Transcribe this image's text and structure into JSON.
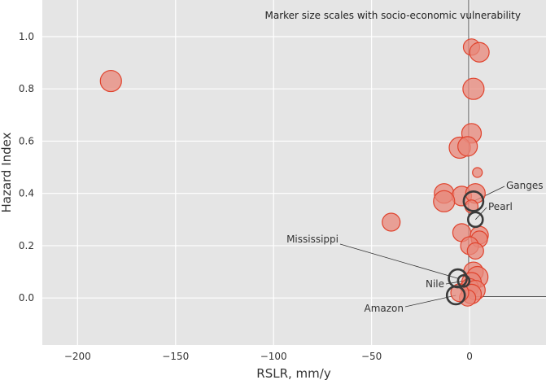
{
  "chart_data": {
    "type": "scatter",
    "xlabel": "RSLR, mm/y",
    "ylabel": "Hazard Index",
    "xlim": [
      -218,
      39
    ],
    "ylim": [
      -0.18,
      1.14
    ],
    "xticks": [
      -200,
      -150,
      -100,
      -50,
      0
    ],
    "xtick_labels": [
      "−200",
      "−150",
      "−100",
      "−50",
      "0"
    ],
    "yticks": [
      0.0,
      0.2,
      0.4,
      0.6,
      0.8,
      1.0
    ],
    "ytick_labels": [
      "0.0",
      "0.2",
      "0.4",
      "0.6",
      "0.8",
      "1.0"
    ],
    "grid": true,
    "note": "Marker size scales with socio-economic vulnerability",
    "colors": {
      "background": "#e5e5e5",
      "grid": "#ffffff",
      "point_fill": "#e8877a",
      "point_edge": "#e0432d",
      "highlight_edge": "#3a3a3a",
      "reference_line": "#555555"
    },
    "points": [
      {
        "x": -183,
        "y": 0.83,
        "size": 13
      },
      {
        "x": 1,
        "y": 0.96,
        "size": 10
      },
      {
        "x": 5,
        "y": 0.94,
        "size": 12
      },
      {
        "x": 2,
        "y": 0.8,
        "size": 13
      },
      {
        "x": 1,
        "y": 0.63,
        "size": 12
      },
      {
        "x": -5,
        "y": 0.575,
        "size": 13
      },
      {
        "x": -1,
        "y": 0.58,
        "size": 12
      },
      {
        "x": 4,
        "y": 0.48,
        "size": 6
      },
      {
        "x": -13,
        "y": 0.4,
        "size": 12
      },
      {
        "x": -4,
        "y": 0.39,
        "size": 12
      },
      {
        "x": 3,
        "y": 0.4,
        "size": 12
      },
      {
        "x": -13,
        "y": 0.37,
        "size": 13
      },
      {
        "x": -40,
        "y": 0.29,
        "size": 11
      },
      {
        "x": 1,
        "y": 0.35,
        "size": 8
      },
      {
        "x": -4,
        "y": 0.25,
        "size": 11
      },
      {
        "x": 5,
        "y": 0.24,
        "size": 11
      },
      {
        "x": 5,
        "y": 0.225,
        "size": 10
      },
      {
        "x": 0,
        "y": 0.2,
        "size": 11
      },
      {
        "x": 3,
        "y": 0.18,
        "size": 10
      },
      {
        "x": 2,
        "y": 0.1,
        "size": 12
      },
      {
        "x": 4,
        "y": 0.08,
        "size": 13
      },
      {
        "x": 1,
        "y": 0.06,
        "size": 12
      },
      {
        "x": 0,
        "y": 0.04,
        "size": 11
      },
      {
        "x": 3,
        "y": 0.03,
        "size": 12
      },
      {
        "x": 1,
        "y": 0.015,
        "size": 12
      },
      {
        "x": -1,
        "y": 0.0,
        "size": 10
      },
      {
        "x": -5,
        "y": 0.02,
        "size": 11
      }
    ],
    "highlighted": [
      {
        "name": "Ganges",
        "x": 2,
        "y": 0.37,
        "size": 12
      },
      {
        "name": "Pearl",
        "x": 3,
        "y": 0.3,
        "size": 9
      },
      {
        "name": "Mississippi",
        "x": -6,
        "y": 0.075,
        "size": 11
      },
      {
        "name": "Nile",
        "x": -3,
        "y": 0.065,
        "size": 7
      },
      {
        "name": "Amazon",
        "x": -7,
        "y": 0.01,
        "size": 11
      }
    ]
  }
}
